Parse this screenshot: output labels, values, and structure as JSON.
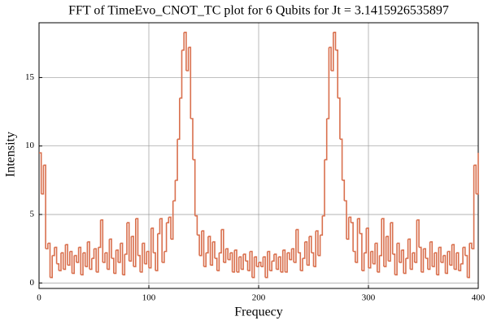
{
  "chart_data": {
    "type": "step",
    "title": "FFT of TimeEvo_CNOT_TC plot for 6 Qubits for Jt = 3.1415926535897",
    "x_label": "Frequecy",
    "y_label": "Intensity",
    "xlim": [
      0,
      400
    ],
    "ylim": [
      -0.4,
      19
    ],
    "xticks": [
      0,
      100,
      200,
      300,
      400
    ],
    "yticks": [
      0,
      5,
      10,
      15
    ],
    "grid": true,
    "series": [
      {
        "color": "#d9704e",
        "x": [
          0,
          2,
          4,
          6,
          8,
          10,
          12,
          14,
          16,
          18,
          20,
          22,
          24,
          26,
          28,
          30,
          32,
          34,
          36,
          38,
          40,
          42,
          44,
          46,
          48,
          50,
          52,
          54,
          56,
          58,
          60,
          62,
          64,
          66,
          68,
          70,
          72,
          74,
          76,
          78,
          80,
          82,
          84,
          86,
          88,
          90,
          92,
          94,
          96,
          98,
          100,
          102,
          104,
          106,
          108,
          110,
          112,
          114,
          116,
          118,
          120,
          122,
          124,
          126,
          128,
          130,
          132,
          134,
          136,
          138,
          140,
          142,
          144,
          146,
          148,
          150,
          152,
          154,
          156,
          158,
          160,
          162,
          164,
          166,
          168,
          170,
          172,
          174,
          176,
          178,
          180,
          182,
          184,
          186,
          188,
          190,
          192,
          194,
          196,
          198,
          200,
          202,
          204,
          206,
          208,
          210,
          212,
          214,
          216,
          218,
          220,
          222,
          224,
          226,
          228,
          230,
          232,
          234,
          236,
          238,
          240,
          242,
          244,
          246,
          248,
          250,
          252,
          254,
          256,
          258,
          260,
          262,
          264,
          266,
          268,
          270,
          272,
          274,
          276,
          278,
          280,
          282,
          284,
          286,
          288,
          290,
          292,
          294,
          296,
          298,
          300,
          302,
          304,
          306,
          308,
          310,
          312,
          314,
          316,
          318,
          320,
          322,
          324,
          326,
          328,
          330,
          332,
          334,
          336,
          338,
          340,
          342,
          344,
          346,
          348,
          350,
          352,
          354,
          356,
          358,
          360,
          362,
          364,
          366,
          368,
          370,
          372,
          374,
          376,
          378,
          380,
          382,
          384,
          386,
          388,
          390,
          392,
          394,
          396,
          398,
          400
        ],
        "values": [
          9.5,
          6.5,
          8.6,
          2.5,
          2.9,
          0.4,
          2.0,
          2.6,
          1.4,
          0.9,
          2.2,
          1.0,
          2.8,
          1.3,
          2.3,
          0.7,
          2.0,
          1.5,
          2.6,
          0.6,
          2.2,
          1.2,
          3.0,
          1.0,
          1.8,
          2.5,
          0.8,
          2.6,
          4.6,
          1.5,
          2.2,
          1.0,
          3.2,
          1.8,
          0.7,
          2.4,
          1.5,
          2.9,
          0.6,
          2.1,
          4.4,
          1.6,
          3.4,
          1.2,
          4.7,
          2.0,
          0.8,
          2.9,
          1.4,
          2.3,
          1.1,
          4.0,
          2.2,
          0.9,
          3.6,
          4.7,
          1.5,
          2.3,
          4.4,
          4.8,
          3.2,
          6.0,
          7.5,
          10.5,
          13.5,
          17.0,
          18.3,
          15.5,
          17.2,
          12.0,
          9.0,
          4.9,
          3.5,
          2.0,
          3.8,
          1.2,
          2.2,
          3.4,
          1.3,
          3.0,
          1.8,
          0.9,
          2.2,
          3.9,
          1.5,
          2.5,
          1.7,
          2.2,
          0.8,
          2.4,
          0.8,
          1.9,
          1.0,
          2.1,
          1.6,
          0.9,
          2.3,
          0.4,
          1.9,
          1.2,
          1.5,
          1.2,
          1.9,
          0.4,
          2.3,
          0.9,
          1.6,
          2.1,
          1.0,
          1.9,
          0.8,
          2.4,
          0.8,
          2.2,
          1.7,
          2.5,
          1.5,
          3.9,
          2.2,
          0.9,
          1.8,
          3.0,
          1.3,
          3.4,
          2.2,
          1.2,
          3.8,
          2.0,
          3.5,
          4.9,
          9.0,
          12.0,
          17.2,
          15.5,
          18.3,
          17.0,
          13.5,
          10.5,
          7.5,
          6.0,
          3.2,
          4.8,
          4.4,
          2.3,
          1.5,
          4.7,
          3.6,
          0.9,
          2.2,
          4.0,
          1.1,
          2.3,
          1.4,
          2.9,
          0.8,
          2.0,
          4.7,
          1.2,
          3.4,
          1.6,
          4.4,
          2.1,
          0.6,
          2.9,
          1.5,
          2.4,
          0.7,
          1.8,
          3.2,
          1.0,
          2.2,
          1.5,
          4.6,
          2.6,
          0.8,
          2.5,
          1.8,
          1.0,
          3.0,
          1.2,
          2.2,
          0.6,
          2.6,
          1.5,
          2.0,
          0.7,
          2.3,
          1.3,
          2.8,
          1.0,
          2.2,
          0.9,
          1.4,
          2.6,
          2.0,
          0.4,
          2.9,
          2.5,
          8.6,
          6.5,
          9.5
        ]
      }
    ]
  }
}
